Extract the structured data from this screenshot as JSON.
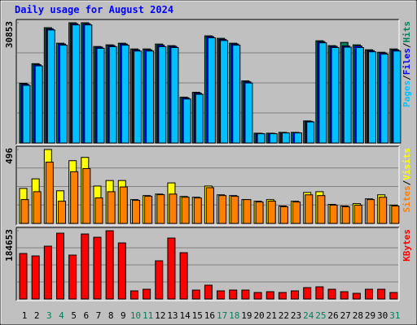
{
  "title": "Daily usage for August 2024",
  "chart_data": [
    {
      "type": "bar",
      "ylim": [
        0,
        30853
      ],
      "yticks": [
        30853
      ],
      "legend_separator": "/",
      "series": [
        {
          "name": "Hits",
          "color": "#00805c",
          "values": [
            15322,
            20359,
            29594,
            25606,
            30853,
            30853,
            24767,
            25187,
            25606,
            24137,
            24137,
            25396,
            24977,
            11754,
            13013,
            27495,
            26865,
            25606,
            15951,
            2519,
            2519,
            2729,
            2729,
            5667,
            26236,
            24977,
            25816,
            25187,
            23927,
            23297,
            24137
          ]
        },
        {
          "name": "Files",
          "color": "#0000ff",
          "values": [
            15100,
            20100,
            29300,
            25400,
            30600,
            30600,
            24600,
            25000,
            25400,
            23900,
            23900,
            25100,
            24800,
            11600,
            12800,
            27300,
            26600,
            25400,
            15700,
            2450,
            2450,
            2650,
            2650,
            5550,
            26000,
            24800,
            24900,
            24900,
            23700,
            23100,
            23900
          ]
        },
        {
          "name": "Pages",
          "color": "#00c0ff",
          "values": [
            14800,
            19800,
            29000,
            25100,
            30300,
            30300,
            24300,
            24700,
            25100,
            23600,
            23600,
            24700,
            24500,
            11300,
            12500,
            27000,
            26300,
            25100,
            15400,
            2380,
            2380,
            2580,
            2580,
            5400,
            25700,
            24500,
            24600,
            24500,
            23400,
            22800,
            23600
          ]
        }
      ]
    },
    {
      "type": "bar",
      "ylim": [
        0,
        496
      ],
      "yticks": [
        496
      ],
      "legend_separator": "/",
      "series": [
        {
          "name": "Visits",
          "color": "#ffff00",
          "values": [
            235,
            299,
            496,
            219,
            421,
            443,
            251,
            288,
            288,
            160,
            187,
            197,
            272,
            181,
            176,
            251,
            192,
            187,
            160,
            149,
            160,
            117,
            149,
            208,
            213,
            128,
            117,
            133,
            165,
            192,
            123
          ]
        },
        {
          "name": "Sites",
          "color": "#ff8000",
          "values": [
            160,
            213,
            411,
            149,
            347,
            368,
            171,
            213,
            245,
            155,
            182,
            193,
            197,
            176,
            171,
            240,
            187,
            182,
            160,
            144,
            150,
            112,
            144,
            192,
            187,
            123,
            112,
            123,
            160,
            176,
            117
          ]
        }
      ]
    },
    {
      "type": "bar",
      "ylim": [
        0,
        184653
      ],
      "yticks": [
        184653
      ],
      "categories": [
        "1",
        "2",
        "3",
        "4",
        "5",
        "6",
        "7",
        "8",
        "9",
        "10",
        "11",
        "12",
        "13",
        "14",
        "15",
        "16",
        "17",
        "18",
        "19",
        "20",
        "21",
        "22",
        "23",
        "24",
        "25",
        "26",
        "27",
        "28",
        "29",
        "30",
        "31"
      ],
      "label_colors": [
        "#000000",
        "#000000",
        "#00805c",
        "#00805c",
        "#000000",
        "#000000",
        "#000000",
        "#000000",
        "#000000",
        "#00805c",
        "#00805c",
        "#000000",
        "#000000",
        "#000000",
        "#000000",
        "#000000",
        "#00805c",
        "#00805c",
        "#000000",
        "#000000",
        "#000000",
        "#000000",
        "#000000",
        "#00805c",
        "#00805c",
        "#000000",
        "#000000",
        "#000000",
        "#000000",
        "#000000",
        "#00805c"
      ],
      "series": [
        {
          "name": "KBytes",
          "color": "#ff0000",
          "values": [
            123102,
            116498,
            142877,
            178057,
            118706,
            175860,
            167067,
            184653,
            151679,
            21983,
            26379,
            103318,
            164869,
            125301,
            24181,
            37371,
            21983,
            24181,
            24181,
            17586,
            19784,
            17586,
            21983,
            30776,
            32974,
            26379,
            19784,
            15388,
            26379,
            26379,
            17586
          ]
        }
      ]
    }
  ]
}
